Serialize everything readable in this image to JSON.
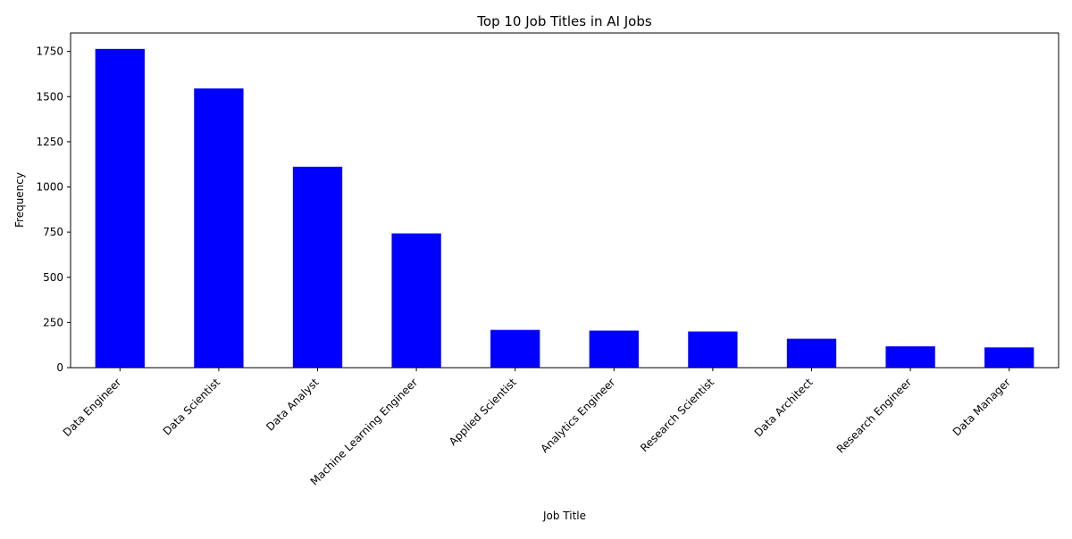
{
  "chart_data": {
    "type": "bar",
    "title": "Top 10 Job Titles in AI Jobs",
    "xlabel": "Job Title",
    "ylabel": "Frequency",
    "categories": [
      "Data Engineer",
      "Data Scientist",
      "Data Analyst",
      "Machine Learning Engineer",
      "Applied Scientist",
      "Analytics Engineer",
      "Research Scientist",
      "Data Architect",
      "Research Engineer",
      "Data Manager"
    ],
    "values": [
      1764,
      1545,
      1112,
      743,
      209,
      205,
      200,
      160,
      118,
      112
    ],
    "ylim": [
      0,
      1852
    ],
    "yticks": [
      0,
      250,
      500,
      750,
      1000,
      1250,
      1500,
      1750
    ],
    "bar_color": "#0000ff",
    "grid": false,
    "legend": "none"
  }
}
